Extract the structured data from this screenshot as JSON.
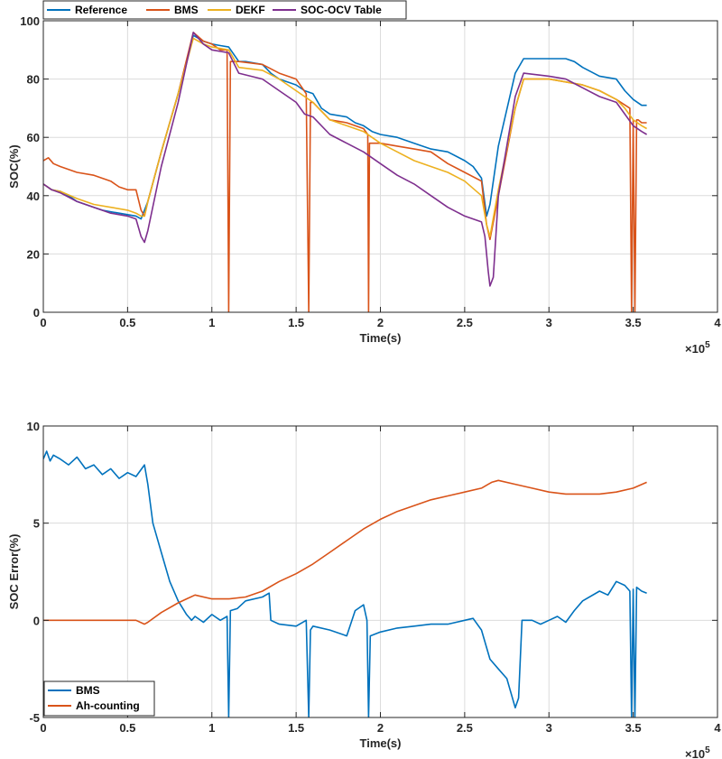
{
  "chart_data": [
    {
      "type": "line",
      "title": "",
      "xlabel": "Time(s)",
      "ylabel": "SOC(%)",
      "x_exponent_label": "×10",
      "x_exponent_power": "5",
      "xlim": [
        0,
        4
      ],
      "ylim": [
        0,
        100
      ],
      "x_ticks": [
        0,
        0.5,
        1,
        1.5,
        2,
        2.5,
        3,
        3.5,
        4
      ],
      "x_tick_labels": [
        "0",
        "0.5",
        "1",
        "1.5",
        "2",
        "2.5",
        "3",
        "3.5",
        "4"
      ],
      "y_ticks": [
        0,
        20,
        40,
        60,
        80,
        100
      ],
      "y_tick_labels": [
        "0",
        "20",
        "40",
        "60",
        "80",
        "100"
      ],
      "grid": true,
      "legend_position": "top-left, horizontal",
      "series": [
        {
          "name": "Reference",
          "color": "#0072BD",
          "x": [
            0,
            0.05,
            0.1,
            0.15,
            0.2,
            0.25,
            0.3,
            0.35,
            0.4,
            0.45,
            0.5,
            0.55,
            0.58,
            0.6,
            0.62,
            0.7,
            0.8,
            0.89,
            0.95,
            1.0,
            1.05,
            1.1,
            1.16,
            1.2,
            1.3,
            1.35,
            1.4,
            1.5,
            1.55,
            1.6,
            1.65,
            1.7,
            1.8,
            1.85,
            1.9,
            1.95,
            2.0,
            2.1,
            2.2,
            2.3,
            2.4,
            2.5,
            2.55,
            2.6,
            2.63,
            2.65,
            2.7,
            2.8,
            2.85,
            2.9,
            3.0,
            3.1,
            3.15,
            3.2,
            3.3,
            3.4,
            3.45,
            3.5,
            3.55,
            3.58
          ],
          "y": [
            44,
            42,
            41.5,
            40,
            38,
            37,
            36,
            35,
            34.5,
            34,
            33.5,
            33,
            32,
            35,
            38,
            55,
            75,
            95,
            93,
            92,
            91.5,
            91,
            86,
            86,
            85,
            82,
            80,
            78,
            76,
            75,
            70,
            68,
            67,
            65,
            64,
            62,
            61,
            60,
            58,
            56,
            55,
            52,
            50,
            46,
            33,
            37,
            57,
            82,
            87,
            87,
            87,
            87,
            86,
            84,
            81,
            80,
            76,
            73,
            71,
            71
          ]
        },
        {
          "name": "BMS",
          "color": "#D95319",
          "x": [
            0,
            0.03,
            0.06,
            0.1,
            0.2,
            0.3,
            0.4,
            0.45,
            0.5,
            0.55,
            0.58,
            0.6,
            0.62,
            0.7,
            0.8,
            0.89,
            0.95,
            1.0,
            1.05,
            1.09,
            1.1,
            1.11,
            1.16,
            1.3,
            1.4,
            1.5,
            1.56,
            1.575,
            1.585,
            1.6,
            1.7,
            1.8,
            1.9,
            1.925,
            1.93,
            1.935,
            2.0,
            2.1,
            2.2,
            2.3,
            2.4,
            2.5,
            2.6,
            2.63,
            2.65,
            2.7,
            2.8,
            2.85,
            3.0,
            3.1,
            3.2,
            3.3,
            3.4,
            3.48,
            3.49,
            3.5,
            3.51,
            3.52,
            3.53,
            3.55,
            3.58
          ],
          "y": [
            52,
            53,
            51,
            50,
            48,
            47,
            45,
            43,
            42,
            42,
            35,
            33,
            38,
            55,
            75,
            96,
            93,
            92,
            90,
            90,
            0,
            86,
            86,
            85,
            82,
            80,
            75,
            0,
            72,
            72,
            66,
            65,
            63,
            61,
            0,
            58,
            58,
            57,
            56,
            55,
            51,
            48,
            45,
            30,
            25,
            40,
            70,
            80,
            80,
            79,
            78,
            76,
            73,
            70,
            0,
            66,
            0,
            66,
            66,
            65,
            65
          ]
        },
        {
          "name": "DEKF",
          "color": "#EDB120",
          "x": [
            0,
            0.05,
            0.1,
            0.2,
            0.3,
            0.4,
            0.5,
            0.55,
            0.58,
            0.6,
            0.62,
            0.7,
            0.8,
            0.89,
            0.95,
            1.0,
            1.1,
            1.16,
            1.3,
            1.4,
            1.5,
            1.6,
            1.7,
            1.8,
            1.9,
            2.0,
            2.1,
            2.2,
            2.3,
            2.4,
            2.5,
            2.6,
            2.63,
            2.65,
            2.7,
            2.8,
            2.85,
            3.0,
            3.1,
            3.2,
            3.3,
            3.4,
            3.45,
            3.5,
            3.55,
            3.58
          ],
          "y": [
            44,
            42,
            41.5,
            39,
            37,
            36,
            35,
            34,
            33,
            33,
            38,
            55,
            75,
            94,
            92,
            91,
            90,
            84,
            83,
            80,
            76,
            72,
            66,
            64,
            62,
            58,
            55,
            52,
            50,
            48,
            45,
            40,
            30,
            26,
            42,
            70,
            80,
            80,
            79,
            78,
            76,
            73,
            70,
            66,
            64,
            63
          ]
        },
        {
          "name": "SOC-OCV Table",
          "color": "#7E2F8E",
          "x": [
            0,
            0.05,
            0.1,
            0.2,
            0.3,
            0.4,
            0.5,
            0.55,
            0.58,
            0.6,
            0.62,
            0.7,
            0.8,
            0.89,
            0.95,
            1.0,
            1.1,
            1.16,
            1.3,
            1.4,
            1.5,
            1.55,
            1.6,
            1.7,
            1.8,
            1.9,
            2.0,
            2.1,
            2.2,
            2.3,
            2.4,
            2.5,
            2.6,
            2.62,
            2.64,
            2.65,
            2.67,
            2.7,
            2.8,
            2.85,
            3.0,
            3.1,
            3.2,
            3.3,
            3.4,
            3.45,
            3.5,
            3.55,
            3.58
          ],
          "y": [
            44,
            42,
            41,
            38,
            36,
            34,
            33,
            32,
            26,
            24,
            28,
            50,
            72,
            96,
            92,
            90,
            89,
            82,
            80,
            76,
            72,
            68,
            67,
            61,
            58,
            55,
            51,
            47,
            44,
            40,
            36,
            33,
            31,
            26,
            14,
            9,
            12,
            40,
            74,
            82,
            81,
            80,
            77,
            74,
            72,
            68,
            64,
            62,
            61
          ]
        }
      ]
    },
    {
      "type": "line",
      "title": "",
      "xlabel": "Time(s)",
      "ylabel": "SOC Error(%)",
      "x_exponent_label": "×10",
      "x_exponent_power": "5",
      "xlim": [
        0,
        4
      ],
      "ylim": [
        -5,
        10
      ],
      "x_ticks": [
        0,
        0.5,
        1,
        1.5,
        2,
        2.5,
        3,
        3.5,
        4
      ],
      "x_tick_labels": [
        "0",
        "0.5",
        "1",
        "1.5",
        "2",
        "2.5",
        "3",
        "3.5",
        "4"
      ],
      "y_ticks": [
        -5,
        0,
        5,
        10
      ],
      "y_tick_labels": [
        "-5",
        "0",
        "5",
        "10"
      ],
      "grid": true,
      "legend_position": "bottom-left",
      "series": [
        {
          "name": "BMS",
          "color": "#0072BD",
          "x": [
            0,
            0.02,
            0.04,
            0.06,
            0.1,
            0.15,
            0.2,
            0.25,
            0.3,
            0.35,
            0.4,
            0.45,
            0.5,
            0.55,
            0.6,
            0.62,
            0.65,
            0.7,
            0.75,
            0.8,
            0.85,
            0.88,
            0.9,
            0.95,
            1.0,
            1.05,
            1.09,
            1.1,
            1.11,
            1.15,
            1.2,
            1.3,
            1.34,
            1.35,
            1.4,
            1.5,
            1.56,
            1.575,
            1.585,
            1.6,
            1.7,
            1.8,
            1.85,
            1.9,
            1.92,
            1.93,
            1.94,
            2.0,
            2.1,
            2.2,
            2.3,
            2.4,
            2.5,
            2.55,
            2.6,
            2.65,
            2.7,
            2.75,
            2.8,
            2.82,
            2.84,
            2.9,
            2.95,
            3.0,
            3.05,
            3.1,
            3.15,
            3.2,
            3.3,
            3.35,
            3.4,
            3.45,
            3.48,
            3.49,
            3.5,
            3.51,
            3.52,
            3.55,
            3.58
          ],
          "y": [
            8.3,
            8.7,
            8.2,
            8.5,
            8.3,
            8.0,
            8.4,
            7.8,
            8.0,
            7.5,
            7.8,
            7.3,
            7.6,
            7.4,
            8.0,
            7.0,
            5.0,
            3.5,
            2.0,
            1.0,
            0.3,
            0.0,
            0.2,
            -0.1,
            0.3,
            0.0,
            0.2,
            -5.0,
            0.5,
            0.6,
            1.0,
            1.2,
            1.4,
            0.0,
            -0.2,
            -0.3,
            0.0,
            -5.0,
            -0.5,
            -0.3,
            -0.5,
            -0.8,
            0.5,
            0.8,
            0.0,
            -5.0,
            -0.8,
            -0.6,
            -0.4,
            -0.3,
            -0.2,
            -0.2,
            0.0,
            0.1,
            -0.5,
            -2.0,
            -2.5,
            -3.0,
            -4.5,
            -4.0,
            0.0,
            0.0,
            -0.2,
            0.0,
            0.2,
            -0.1,
            0.5,
            1.0,
            1.5,
            1.3,
            2.0,
            1.8,
            1.5,
            -5.0,
            1.6,
            -5.0,
            1.7,
            1.5,
            1.4
          ]
        },
        {
          "name": "Ah-counting",
          "color": "#D95319",
          "x": [
            0,
            0.1,
            0.2,
            0.3,
            0.4,
            0.5,
            0.55,
            0.6,
            0.62,
            0.7,
            0.8,
            0.85,
            0.9,
            1.0,
            1.1,
            1.2,
            1.3,
            1.4,
            1.5,
            1.6,
            1.7,
            1.8,
            1.9,
            2.0,
            2.1,
            2.2,
            2.3,
            2.4,
            2.5,
            2.6,
            2.64,
            2.66,
            2.7,
            2.8,
            2.9,
            3.0,
            3.1,
            3.2,
            3.3,
            3.4,
            3.5,
            3.58
          ],
          "y": [
            0.0,
            0.0,
            0.0,
            0.0,
            0.0,
            0.0,
            0.0,
            -0.2,
            -0.1,
            0.4,
            0.9,
            1.1,
            1.3,
            1.1,
            1.1,
            1.2,
            1.5,
            2.0,
            2.4,
            2.9,
            3.5,
            4.1,
            4.7,
            5.2,
            5.6,
            5.9,
            6.2,
            6.4,
            6.6,
            6.8,
            7.0,
            7.1,
            7.2,
            7.0,
            6.8,
            6.6,
            6.5,
            6.5,
            6.5,
            6.6,
            6.8,
            7.1
          ]
        }
      ]
    }
  ]
}
